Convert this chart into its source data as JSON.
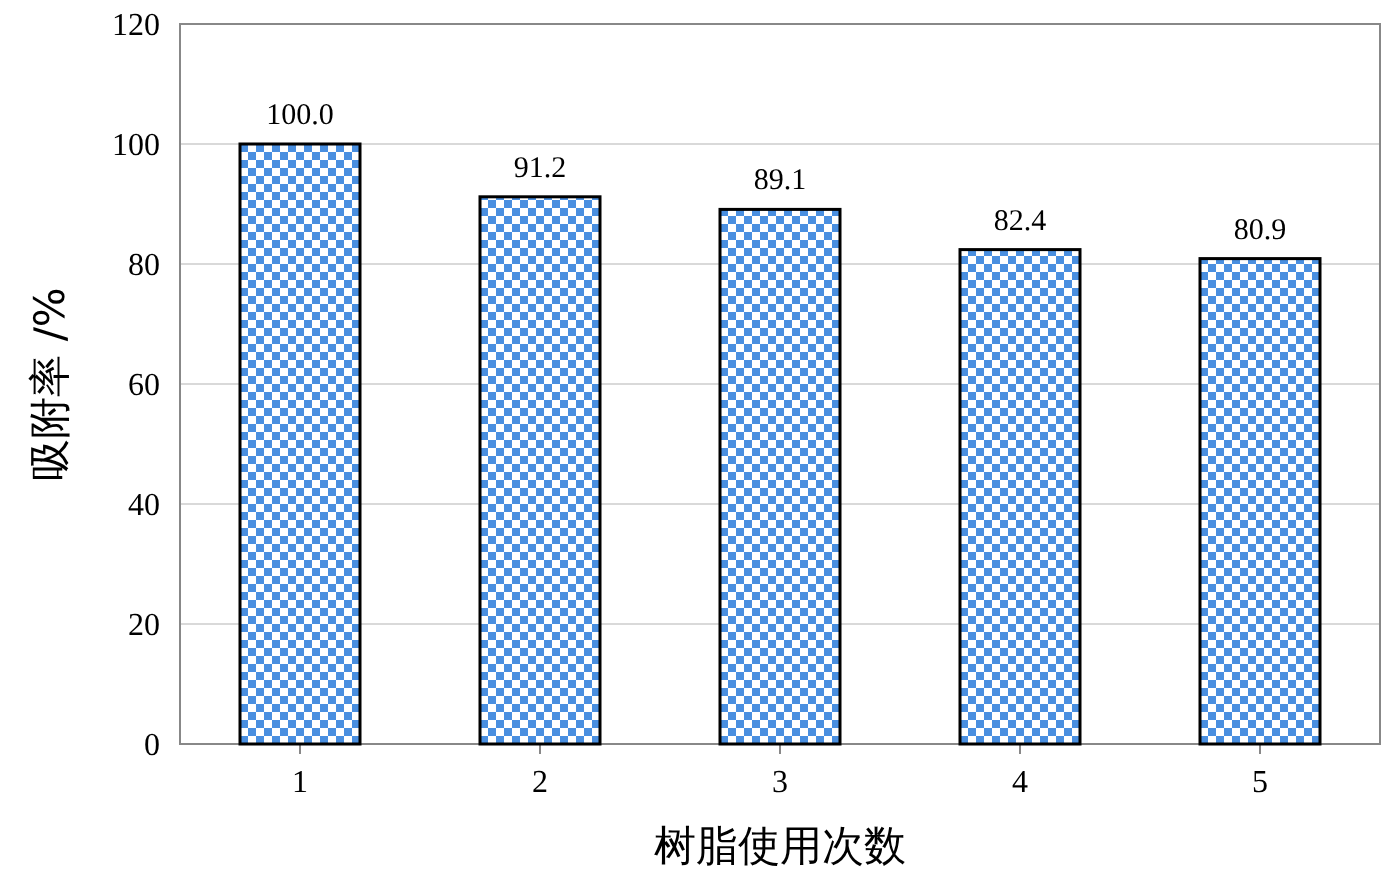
{
  "chart_data": {
    "type": "bar",
    "xlabel": "树脂使用次数",
    "ylabel": "吸附率 /%",
    "categories": [
      "1",
      "2",
      "3",
      "4",
      "5"
    ],
    "values": [
      100.0,
      91.2,
      89.1,
      82.4,
      80.9
    ],
    "value_labels": [
      "100.0",
      "91.2",
      "89.1",
      "82.4",
      "80.9"
    ],
    "color": "#4a8fe0",
    "ylim": [
      0,
      120
    ],
    "yticks": [
      0,
      20,
      40,
      60,
      80,
      100,
      120
    ],
    "grid": "y"
  }
}
